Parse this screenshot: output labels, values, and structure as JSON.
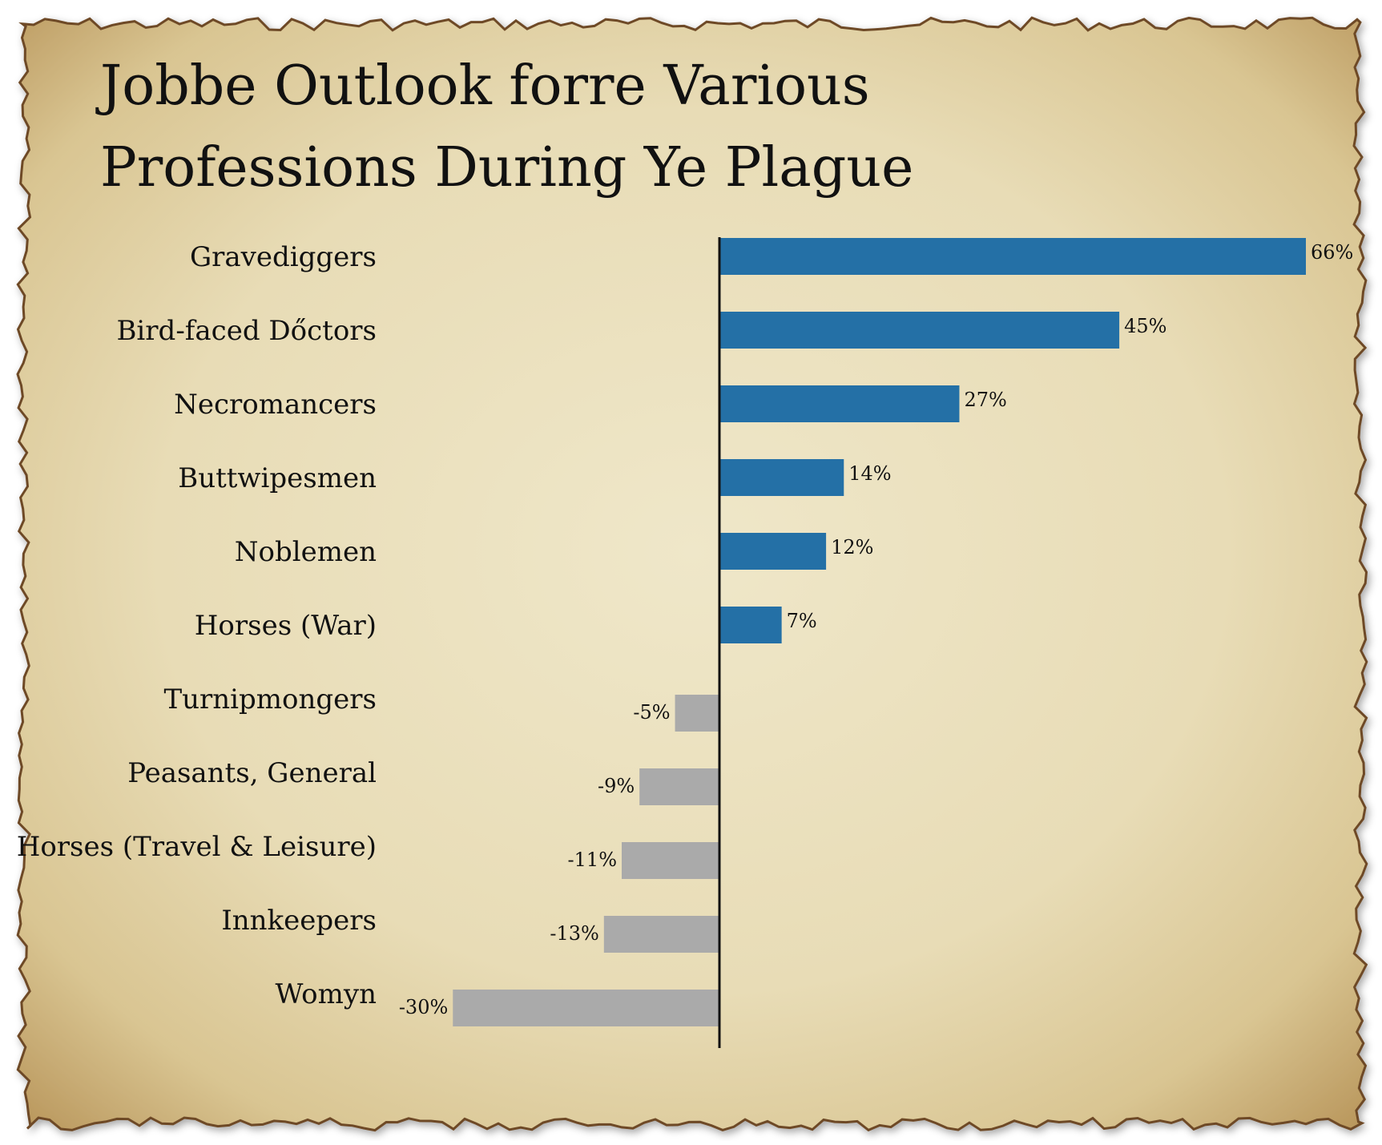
{
  "chart_data": {
    "type": "bar",
    "orientation": "horizontal",
    "title_lines": [
      "Jobbe Outlook forre Various",
      "Professions During Ye Plague"
    ],
    "xlabel": "",
    "ylabel": "",
    "categories": [
      "Gravediggers",
      "Bird-faced Dőctors",
      "Necromancers",
      "Buttwipesmen",
      "Noblemen",
      "Horses (War)",
      "Turnipmongers",
      "Peasants, General",
      "Horses (Travel & Leisure)",
      "Innkeepers",
      "Womyn"
    ],
    "values": [
      66,
      45,
      27,
      14,
      12,
      7,
      -5,
      -9,
      -11,
      -13,
      -30
    ],
    "value_labels": [
      "66%",
      "45%",
      "27%",
      "14%",
      "12%",
      "7%",
      "-5%",
      "-9%",
      "-11%",
      "-13%",
      "-30%"
    ],
    "xlim": [
      -30,
      66
    ],
    "grid": false,
    "legend": "none",
    "colors": {
      "positive": "#2470a6",
      "negative": "#aaaaaa",
      "axis": "#111111"
    }
  },
  "style": {
    "parchment": "#ece2c0",
    "parchment_dark": "#b8955a",
    "burn": "#6e4a26"
  }
}
